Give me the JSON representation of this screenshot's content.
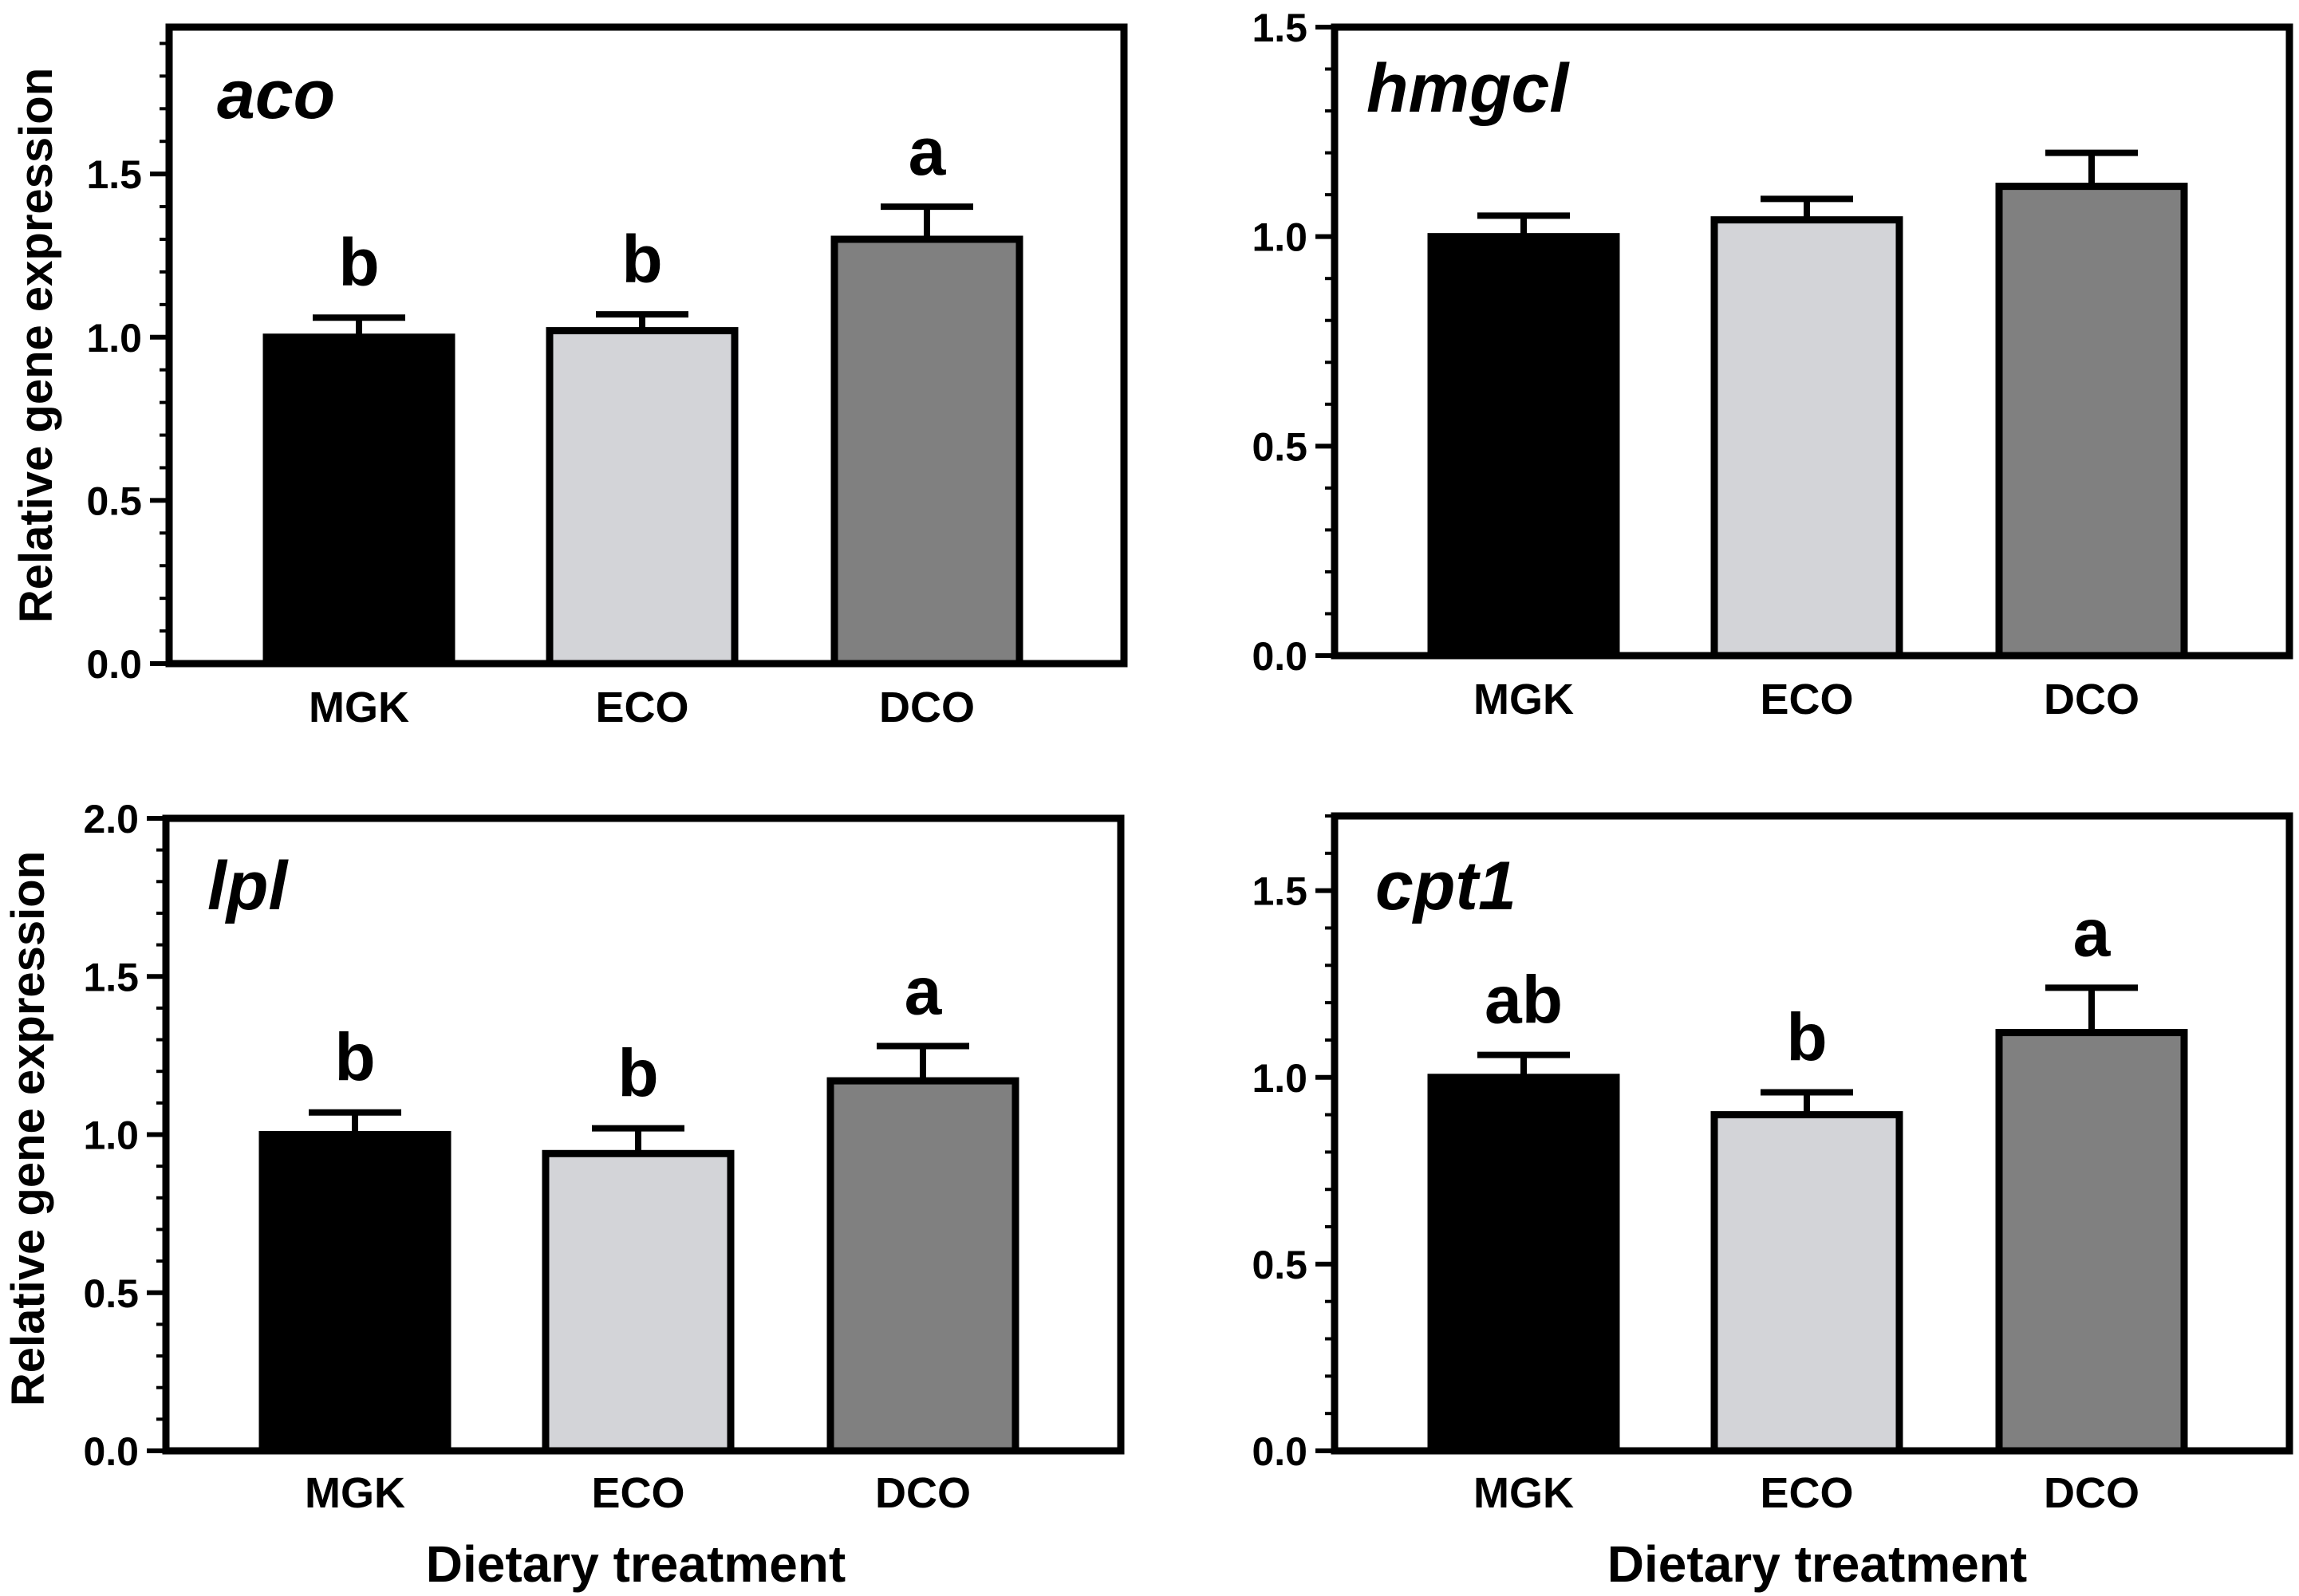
{
  "figure": {
    "y_axis_label": "Relative gene expression",
    "x_axis_label": "Dietary treatment",
    "bar_colors": [
      "#000000",
      "#d3d4d8",
      "#808080"
    ],
    "stroke_color": "#000000"
  },
  "chart_data": [
    {
      "type": "bar",
      "title": "aco",
      "categories": [
        "MGK",
        "ECO",
        "DCO"
      ],
      "values": [
        1.0,
        1.02,
        1.3
      ],
      "errors": [
        0.06,
        0.05,
        0.1
      ],
      "significance_letters": [
        "b",
        "b",
        "a"
      ],
      "ylim": [
        0,
        1.95
      ],
      "yticks": [
        "0.0",
        "0.5",
        "1.0",
        "1.5"
      ],
      "ylabel": "Relative gene expression",
      "xlabel": "",
      "grid": false
    },
    {
      "type": "bar",
      "title": "hmgcl",
      "categories": [
        "MGK",
        "ECO",
        "DCO"
      ],
      "values": [
        1.0,
        1.04,
        1.12
      ],
      "errors": [
        0.05,
        0.05,
        0.08
      ],
      "significance_letters": [
        "",
        "",
        ""
      ],
      "ylim": [
        0,
        1.5
      ],
      "yticks": [
        "0.0",
        "0.5",
        "1.0",
        "1.5"
      ],
      "ylabel": "",
      "xlabel": "",
      "grid": false
    },
    {
      "type": "bar",
      "title": "lpl",
      "categories": [
        "MGK",
        "ECO",
        "DCO"
      ],
      "values": [
        1.0,
        0.94,
        1.17
      ],
      "errors": [
        0.07,
        0.08,
        0.11
      ],
      "significance_letters": [
        "b",
        "b",
        "a"
      ],
      "ylim": [
        0,
        2.0
      ],
      "yticks": [
        "0.0",
        "0.5",
        "1.0",
        "1.5",
        "2.0"
      ],
      "ylabel": "Relative gene expression",
      "xlabel": "Dietary treatment",
      "grid": false
    },
    {
      "type": "bar",
      "title": "cpt1",
      "categories": [
        "MGK",
        "ECO",
        "DCO"
      ],
      "values": [
        1.0,
        0.9,
        1.12
      ],
      "errors": [
        0.06,
        0.06,
        0.12
      ],
      "significance_letters": [
        "ab",
        "b",
        "a"
      ],
      "ylim": [
        0,
        1.7
      ],
      "yticks": [
        "0.0",
        "0.5",
        "1.0",
        "1.5"
      ],
      "ylabel": "",
      "xlabel": "Dietary treatment",
      "grid": false
    }
  ]
}
